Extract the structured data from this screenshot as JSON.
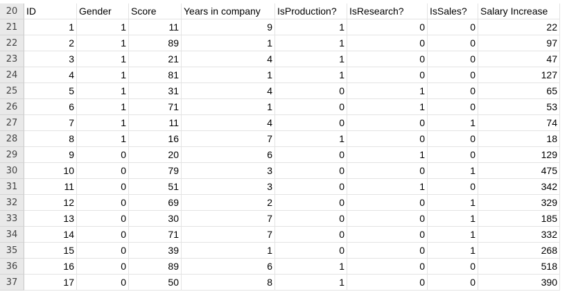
{
  "colors": {
    "row_header_bg": "#e9e9e9",
    "gridline": "#e3e3e3",
    "text": "#000000"
  },
  "sheet": {
    "header_row": {
      "number": "20",
      "labels": [
        "ID",
        "Gender",
        "Score",
        "Years in company",
        "IsProduction?",
        "IsResearch?",
        "IsSales?",
        "Salary Increase"
      ]
    },
    "rows": [
      {
        "n": "21",
        "cells": [
          "1",
          "1",
          "11",
          "9",
          "1",
          "0",
          "0",
          "22"
        ]
      },
      {
        "n": "22",
        "cells": [
          "2",
          "1",
          "89",
          "1",
          "1",
          "0",
          "0",
          "97"
        ]
      },
      {
        "n": "23",
        "cells": [
          "3",
          "1",
          "21",
          "4",
          "1",
          "0",
          "0",
          "47"
        ]
      },
      {
        "n": "24",
        "cells": [
          "4",
          "1",
          "81",
          "1",
          "1",
          "0",
          "0",
          "127"
        ]
      },
      {
        "n": "25",
        "cells": [
          "5",
          "1",
          "31",
          "4",
          "0",
          "1",
          "0",
          "65"
        ]
      },
      {
        "n": "26",
        "cells": [
          "6",
          "1",
          "71",
          "1",
          "0",
          "1",
          "0",
          "53"
        ]
      },
      {
        "n": "27",
        "cells": [
          "7",
          "1",
          "11",
          "4",
          "0",
          "0",
          "1",
          "74"
        ]
      },
      {
        "n": "28",
        "cells": [
          "8",
          "1",
          "16",
          "7",
          "1",
          "0",
          "0",
          "18"
        ]
      },
      {
        "n": "29",
        "cells": [
          "9",
          "0",
          "20",
          "6",
          "0",
          "1",
          "0",
          "129"
        ]
      },
      {
        "n": "30",
        "cells": [
          "10",
          "0",
          "79",
          "3",
          "0",
          "0",
          "1",
          "475"
        ]
      },
      {
        "n": "31",
        "cells": [
          "11",
          "0",
          "51",
          "3",
          "0",
          "1",
          "0",
          "342"
        ]
      },
      {
        "n": "32",
        "cells": [
          "12",
          "0",
          "69",
          "2",
          "0",
          "0",
          "1",
          "329"
        ]
      },
      {
        "n": "33",
        "cells": [
          "13",
          "0",
          "30",
          "7",
          "0",
          "0",
          "1",
          "185"
        ]
      },
      {
        "n": "34",
        "cells": [
          "14",
          "0",
          "71",
          "7",
          "0",
          "0",
          "1",
          "332"
        ]
      },
      {
        "n": "35",
        "cells": [
          "15",
          "0",
          "39",
          "1",
          "0",
          "0",
          "1",
          "268"
        ]
      },
      {
        "n": "36",
        "cells": [
          "16",
          "0",
          "89",
          "6",
          "1",
          "0",
          "0",
          "518"
        ]
      },
      {
        "n": "37",
        "cells": [
          "17",
          "0",
          "50",
          "8",
          "1",
          "0",
          "0",
          "390"
        ]
      }
    ]
  }
}
